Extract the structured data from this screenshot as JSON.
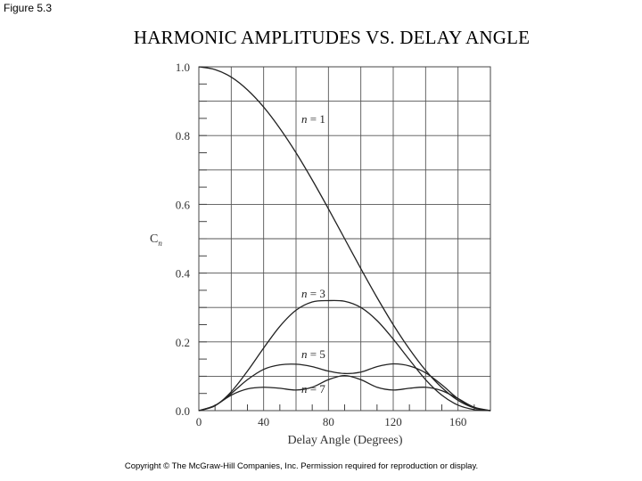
{
  "figure_label": "Figure 5.3",
  "copyright": "Copyright © The McGraw-Hill Companies, Inc. Permission required for reproduction or display.",
  "chart_data": {
    "type": "line",
    "title": "HARMONIC AMPLITUDES VS. DELAY ANGLE",
    "xlabel": "Delay Angle (Degrees)",
    "ylabel": "C",
    "ylabel_subscript": "n",
    "xlim": [
      0,
      180
    ],
    "ylim": [
      0,
      1.0
    ],
    "x_ticks": [
      0,
      40,
      80,
      120,
      160
    ],
    "x_tick_labels": [
      "0",
      "40",
      "80",
      "120",
      "160"
    ],
    "y_ticks": [
      0,
      0.2,
      0.4,
      0.6,
      0.8,
      1.0
    ],
    "y_tick_labels": [
      "0.0",
      "0.2",
      "0.4",
      "0.6",
      "0.8",
      "1.0"
    ],
    "grid": true,
    "x": [
      0,
      10,
      20,
      30,
      40,
      50,
      60,
      70,
      80,
      90,
      100,
      110,
      120,
      130,
      140,
      150,
      160,
      170,
      180
    ],
    "series": [
      {
        "name": "n = 1",
        "label_prefix": "n",
        "label_suffix": " = 1",
        "values": [
          1.0,
          0.992,
          0.97,
          0.933,
          0.883,
          0.821,
          0.75,
          0.671,
          0.587,
          0.5,
          0.413,
          0.329,
          0.25,
          0.179,
          0.117,
          0.067,
          0.03,
          0.008,
          0.0
        ]
      },
      {
        "name": "n = 3",
        "label_prefix": "n",
        "label_suffix": " = 3",
        "values": [
          0.0,
          0.014,
          0.055,
          0.115,
          0.182,
          0.245,
          0.292,
          0.316,
          0.32,
          0.318,
          0.3,
          0.262,
          0.208,
          0.148,
          0.09,
          0.045,
          0.016,
          0.003,
          0.0
        ]
      },
      {
        "name": "n = 5",
        "label_prefix": "n",
        "label_suffix": " = 5",
        "values": [
          0.0,
          0.015,
          0.05,
          0.09,
          0.12,
          0.133,
          0.135,
          0.128,
          0.115,
          0.108,
          0.112,
          0.128,
          0.136,
          0.13,
          0.11,
          0.075,
          0.035,
          0.008,
          0.0
        ]
      },
      {
        "name": "n = 7",
        "label_prefix": "n",
        "label_suffix": " = 7",
        "values": [
          0.0,
          0.015,
          0.045,
          0.063,
          0.068,
          0.065,
          0.06,
          0.068,
          0.09,
          0.102,
          0.09,
          0.068,
          0.06,
          0.065,
          0.068,
          0.058,
          0.035,
          0.01,
          0.0
        ]
      }
    ]
  }
}
